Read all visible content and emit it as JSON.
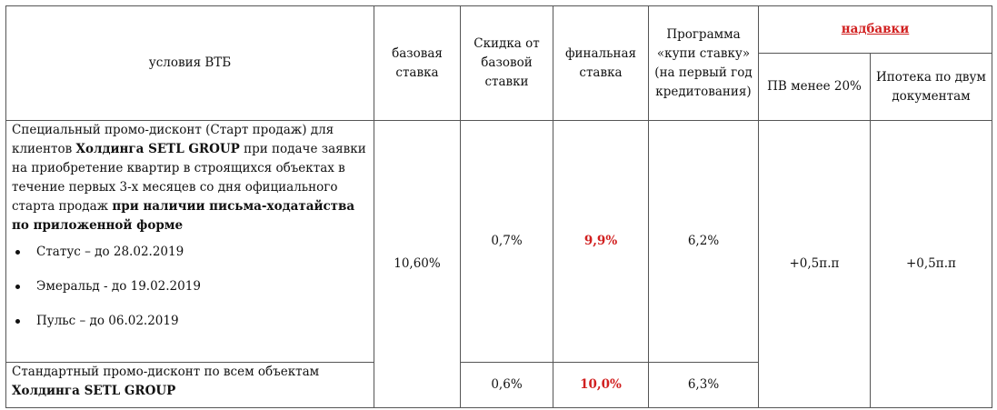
{
  "headers": {
    "conditions": "условия ВТБ",
    "base_rate": "базовая ставка",
    "discount": "Скидка от базовой ставки",
    "final_rate": "финальная ставка",
    "buy_rate_program": "Программа «купи ставку» (на первый год кредитования)",
    "surcharges": "надбавки",
    "down_payment": "ПВ менее 20%",
    "two_docs": "Ипотека по двум документам"
  },
  "row1": {
    "text_1": "Специальный промо-дисконт (Старт продаж) для клиентов ",
    "bold_1": "Холдинга SETL GROUP",
    "text_2": " при подаче заявки на приобретение квартир в строящихся объектах в течение первых 3-х месяцев со дня официального старта продаж ",
    "bold_2": "при наличии письма-ходатайства по приложенной форме",
    "dates": [
      "Статус –  до 28.02.2019",
      "Эмеральд  - до 19.02.2019",
      "Пульс – до  06.02.2019"
    ],
    "discount": "0,7%",
    "final_rate": "9,9%",
    "buy_rate": "6,2%"
  },
  "row2": {
    "text_1": "Стандартный промо-дисконт по всем объектам ",
    "bold_1": "Холдинга SETL GROUP",
    "discount": "0,6%",
    "final_rate": "10,0%",
    "buy_rate": "6,3%"
  },
  "shared": {
    "base_rate": "10,60%",
    "down_payment_surcharge": "+0,5п.п",
    "two_docs_surcharge": "+0,5п.п"
  },
  "colors": {
    "accent_red": "#d11f1f",
    "border": "#555555"
  }
}
